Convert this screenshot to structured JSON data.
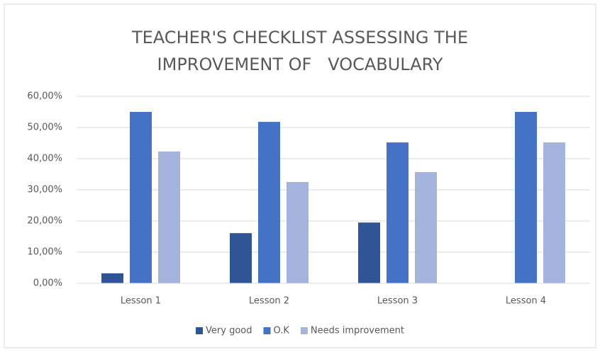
{
  "chart_data": {
    "type": "bar",
    "title": [
      "TEACHER'S CHECKLIST ASSESSING THE",
      "IMPROVEMENT OF   VOCABULARY"
    ],
    "categories": [
      "Lesson 1",
      "Lesson 2",
      "Lesson 3",
      "Lesson 4"
    ],
    "series": [
      {
        "name": "Very good",
        "color": "#2f5597",
        "values": [
          3.2,
          16.1,
          19.5,
          0
        ]
      },
      {
        "name": "O.K",
        "color": "#4472c4",
        "values": [
          55,
          51.8,
          45.2,
          55
        ]
      },
      {
        "name": "Needs improvement",
        "color": "#a5b4dc",
        "values": [
          42.3,
          32.5,
          35.7,
          45.2
        ]
      }
    ],
    "ylim": [
      0,
      60
    ],
    "yticks": [
      {
        "value": 0,
        "label": "0,00%"
      },
      {
        "value": 10,
        "label": "10,00%"
      },
      {
        "value": 20,
        "label": "20,00%"
      },
      {
        "value": 30,
        "label": "30,00%"
      },
      {
        "value": 40,
        "label": "40,00%"
      },
      {
        "value": 50,
        "label": "50,00%"
      },
      {
        "value": 60,
        "label": "60,00%"
      }
    ],
    "grid": true,
    "legend": "bottom"
  }
}
